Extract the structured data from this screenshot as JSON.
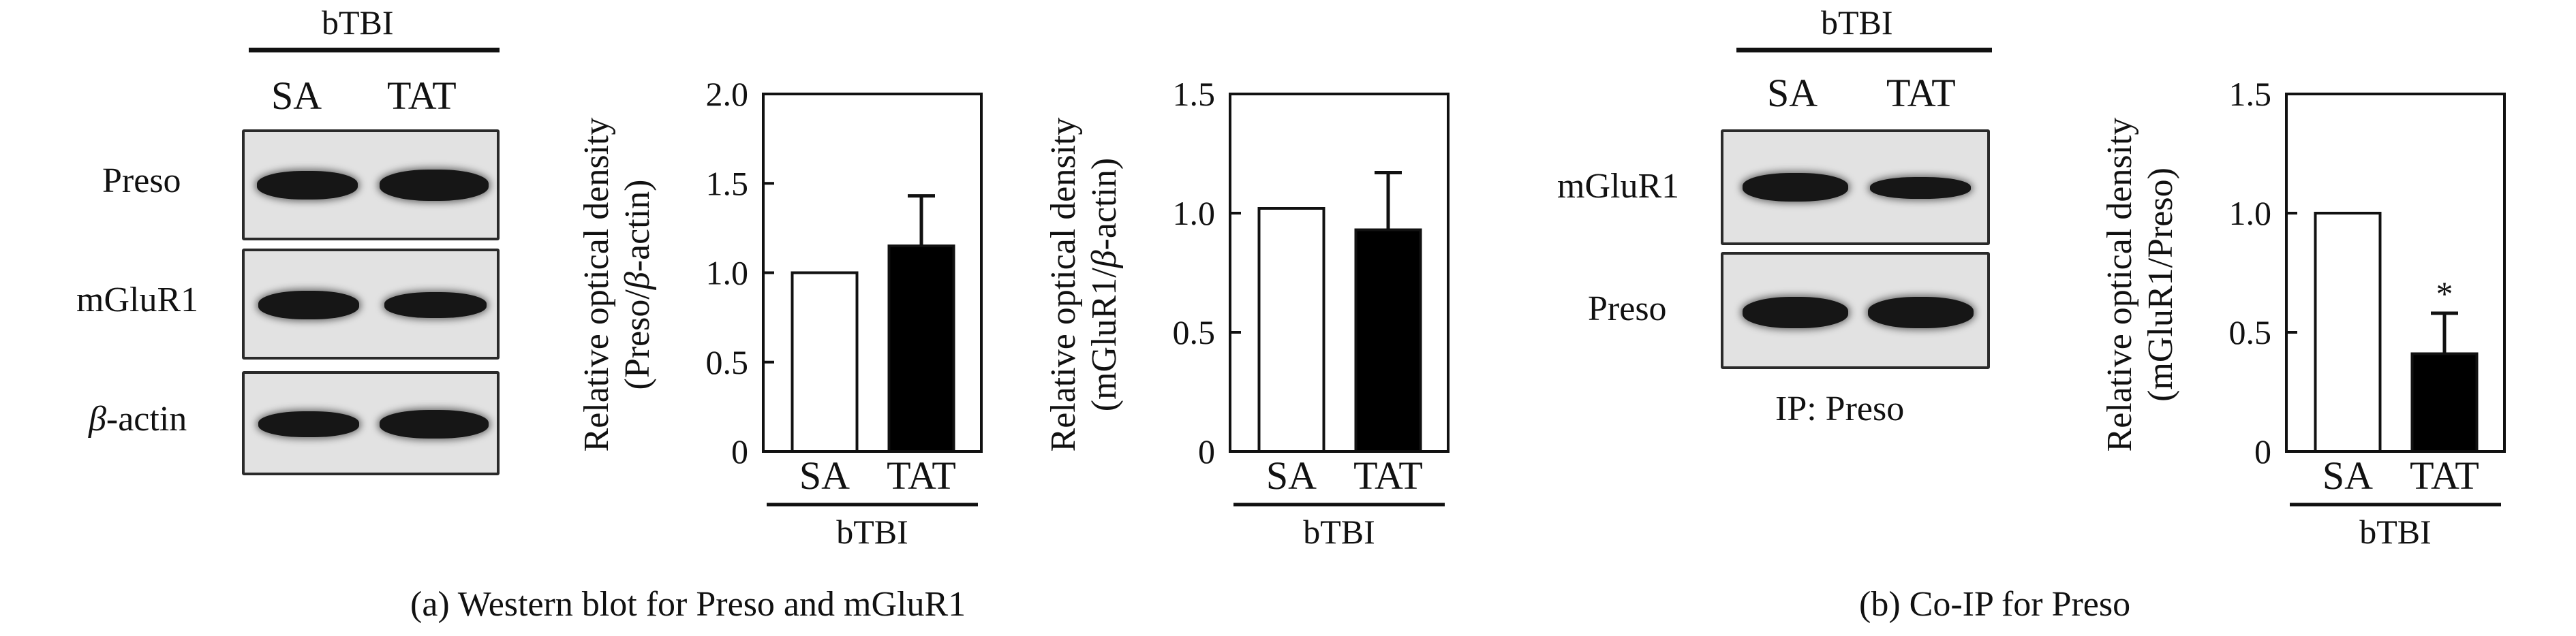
{
  "panel_a": {
    "caption": "(a) Western blot for Preso and mGluR1",
    "blot_group": "bTBI",
    "lanes": [
      "SA",
      "TAT"
    ],
    "rows": [
      {
        "label": "Preso",
        "label_italic_prefix": ""
      },
      {
        "label": "mGluR1",
        "label_italic_prefix": ""
      },
      {
        "label": "-actin",
        "label_italic_prefix": "β"
      }
    ]
  },
  "panel_b": {
    "caption": "(b) Co-IP for Preso",
    "blot_group": "bTBI",
    "lanes": [
      "SA",
      "TAT"
    ],
    "rows": [
      {
        "label": "mGluR1"
      },
      {
        "label": "Preso"
      }
    ],
    "ip_label": "IP: Preso"
  },
  "chart_data": [
    {
      "type": "bar",
      "ylabel_line1": "Relative optical density",
      "ylabel_line2_parts": [
        "(Preso/",
        "β",
        "-actin)"
      ],
      "categories": [
        "SA",
        "TAT"
      ],
      "group_label": "bTBI",
      "values": [
        1.0,
        1.15
      ],
      "errors": [
        0,
        0.28
      ],
      "ylim": [
        0,
        2.0
      ],
      "yticks": [
        "0",
        "0.5",
        "1.0",
        "1.5",
        "2.0"
      ],
      "bar_colors": [
        "#ffffff",
        "#000000"
      ],
      "significance": [
        "",
        ""
      ]
    },
    {
      "type": "bar",
      "ylabel_line1": "Relative optical density",
      "ylabel_line2_parts": [
        "(mGluR1/",
        "β",
        "-actin)"
      ],
      "categories": [
        "SA",
        "TAT"
      ],
      "group_label": "bTBI",
      "values": [
        1.02,
        0.93
      ],
      "errors": [
        0,
        0.24
      ],
      "ylim": [
        0,
        1.5
      ],
      "yticks": [
        "0",
        "0.5",
        "1.0",
        "1.5"
      ],
      "bar_colors": [
        "#ffffff",
        "#000000"
      ],
      "significance": [
        "",
        ""
      ]
    },
    {
      "type": "bar",
      "ylabel_line1": "Relative optical density",
      "ylabel_line2_parts": [
        "(mGluR1/Preso)"
      ],
      "categories": [
        "SA",
        "TAT"
      ],
      "group_label": "bTBI",
      "values": [
        1.0,
        0.41
      ],
      "errors": [
        0,
        0.17
      ],
      "ylim": [
        0,
        1.5
      ],
      "yticks": [
        "0",
        "0.5",
        "1.0",
        "1.5"
      ],
      "bar_colors": [
        "#ffffff",
        "#000000"
      ],
      "significance": [
        "",
        "*"
      ]
    }
  ]
}
